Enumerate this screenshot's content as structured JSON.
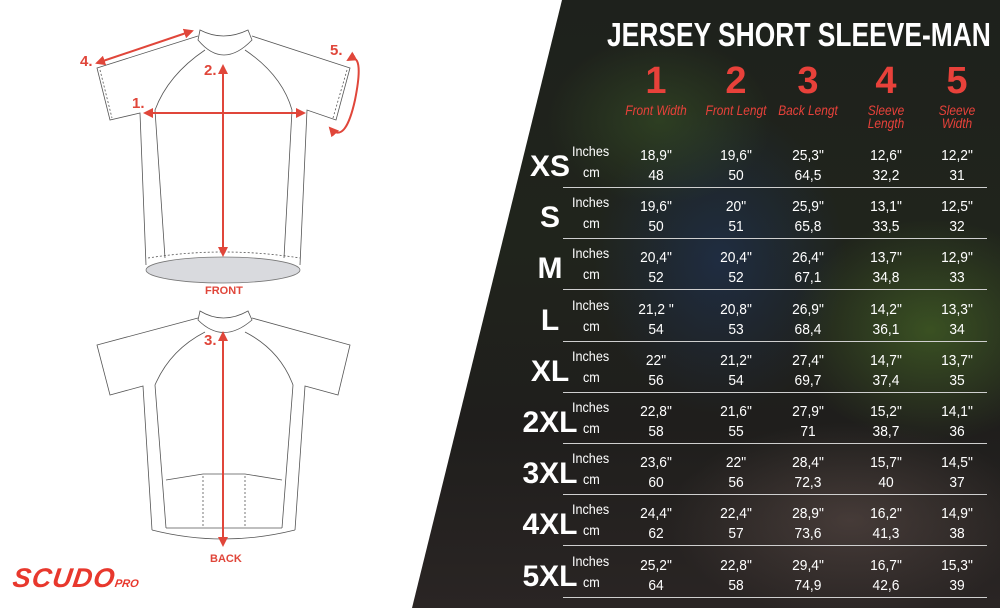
{
  "title": "JERSEY SHORT SLEEVE-MAN",
  "brand": {
    "name": "SCUDO",
    "suffix": "PRO",
    "color": "#e8382d"
  },
  "accent_color": "#e8413a",
  "diagram": {
    "front_label": "FRONT",
    "back_label": "BACK",
    "markers": [
      "1.",
      "2.",
      "3.",
      "4.",
      "5."
    ]
  },
  "columns": [
    {
      "number": "1",
      "label": "Front Width"
    },
    {
      "number": "2",
      "label": "Front Lengt"
    },
    {
      "number": "3",
      "label": "Back Lengt"
    },
    {
      "number": "4",
      "label": "Sleeve Length"
    },
    {
      "number": "5",
      "label": "Sleeve Width"
    }
  ],
  "units": {
    "inches": "Inches",
    "cm": "cm"
  },
  "rows": [
    {
      "size": "XS",
      "inches": [
        "18,9\"",
        "19,6\"",
        "25,3\"",
        "12,6\"",
        "12,2\""
      ],
      "cm": [
        "48",
        "50",
        "64,5",
        "32,2",
        "31"
      ]
    },
    {
      "size": "S",
      "inches": [
        "19,6\"",
        "20\"",
        "25,9\"",
        "13,1\"",
        "12,5\""
      ],
      "cm": [
        "50",
        "51",
        "65,8",
        "33,5",
        "32"
      ]
    },
    {
      "size": "M",
      "inches": [
        "20,4\"",
        "20,4\"",
        "26,4\"",
        "13,7\"",
        "12,9\""
      ],
      "cm": [
        "52",
        "52",
        "67,1",
        "34,8",
        "33"
      ]
    },
    {
      "size": "L",
      "inches": [
        "21,2 \"",
        "20,8\"",
        "26,9\"",
        "14,2\"",
        "13,3\""
      ],
      "cm": [
        "54",
        "53",
        "68,4",
        "36,1",
        "34"
      ]
    },
    {
      "size": "XL",
      "inches": [
        "22\"",
        "21,2\"",
        "27,4\"",
        "14,7\"",
        "13,7\""
      ],
      "cm": [
        "56",
        "54",
        "69,7",
        "37,4",
        "35"
      ]
    },
    {
      "size": "2XL",
      "inches": [
        "22,8\"",
        "21,6\"",
        "27,9\"",
        "15,2\"",
        "14,1\""
      ],
      "cm": [
        "58",
        "55",
        "71",
        "38,7",
        "36"
      ]
    },
    {
      "size": "3XL",
      "inches": [
        "23,6\"",
        "22\"",
        "28,4\"",
        "15,7\"",
        "14,5\""
      ],
      "cm": [
        "60",
        "56",
        "72,3",
        "40",
        "37"
      ]
    },
    {
      "size": "4XL",
      "inches": [
        "24,4\"",
        "22,4\"",
        "28,9\"",
        "16,2\"",
        "14,9\""
      ],
      "cm": [
        "62",
        "57",
        "73,6",
        "41,3",
        "38"
      ]
    },
    {
      "size": "5XL",
      "inches": [
        "25,2\"",
        "22,8\"",
        "29,4\"",
        "16,7\"",
        "15,3\""
      ],
      "cm": [
        "64",
        "58",
        "74,9",
        "42,6",
        "39"
      ]
    }
  ]
}
